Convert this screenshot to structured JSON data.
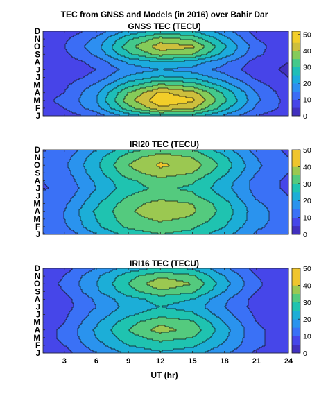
{
  "figure": {
    "title_line1": "TEC from GNSS and Models (in 2016) over Bahir Dar",
    "xlabel": "UT (hr)"
  },
  "colormap": [
    "#3e26a8",
    "#4743e8",
    "#3680fb",
    "#1caadf",
    "#1fc7a8",
    "#80cc5b",
    "#ebba31",
    "#f9e022"
  ],
  "chart_data": [
    {
      "type": "heatmap",
      "title": "GNSS TEC (TECU)",
      "x": [
        0,
        3,
        6,
        9,
        12,
        15,
        18,
        21,
        24
      ],
      "xlim": [
        1,
        24
      ],
      "xticks": [
        3,
        6,
        9,
        12,
        15,
        18,
        21,
        24
      ],
      "yticklabels": [
        "J",
        "F",
        "M",
        "A",
        "M",
        "J",
        "J",
        "A",
        "S",
        "O",
        "N",
        "D"
      ],
      "cbar_ticks": [
        0,
        10,
        20,
        30,
        40,
        50
      ],
      "clim": [
        0,
        52
      ],
      "levels": [
        5,
        10,
        15,
        20,
        25,
        30,
        35,
        40,
        45
      ],
      "z": [
        [
          6,
          7,
          12,
          22,
          28,
          27,
          19,
          10,
          6
        ],
        [
          8,
          10,
          18,
          33,
          44,
          41,
          27,
          14,
          8
        ],
        [
          8,
          11,
          20,
          38,
          49,
          46,
          31,
          16,
          8
        ],
        [
          8,
          10,
          19,
          35,
          46,
          42,
          29,
          15,
          7
        ],
        [
          7,
          9,
          16,
          28,
          36,
          33,
          23,
          12,
          6
        ],
        [
          6,
          7,
          12,
          21,
          26,
          24,
          17,
          9,
          5
        ],
        [
          5,
          6,
          10,
          17,
          20,
          18,
          13,
          7,
          4
        ],
        [
          5,
          7,
          12,
          21,
          25,
          23,
          16,
          8,
          5
        ],
        [
          6,
          9,
          16,
          29,
          37,
          35,
          23,
          11,
          6
        ],
        [
          6,
          10,
          18,
          33,
          43,
          41,
          26,
          12,
          6
        ],
        [
          6,
          9,
          16,
          29,
          37,
          34,
          22,
          10,
          6
        ],
        [
          5,
          7,
          12,
          21,
          27,
          25,
          17,
          8,
          5
        ]
      ]
    },
    {
      "type": "heatmap",
      "title": "IRI20 TEC (TECU)",
      "x": [
        0,
        3,
        6,
        9,
        12,
        15,
        18,
        21,
        24
      ],
      "xlim": [
        1,
        24
      ],
      "xticks": [
        3,
        6,
        9,
        12,
        15,
        18,
        21,
        24
      ],
      "yticklabels": [
        "J",
        "F",
        "M",
        "A",
        "M",
        "J",
        "J",
        "A",
        "S",
        "O",
        "N",
        "D"
      ],
      "cbar_ticks": [
        0,
        10,
        20,
        30,
        40,
        50
      ],
      "clim": [
        0,
        50
      ],
      "levels": [
        5,
        10,
        15,
        20,
        25,
        30,
        35,
        40
      ],
      "z": [
        [
          9,
          11,
          20,
          27,
          30,
          28,
          22,
          14,
          10
        ],
        [
          11,
          14,
          24,
          31,
          33,
          31,
          25,
          16,
          12
        ],
        [
          12,
          15,
          25,
          33,
          36,
          34,
          27,
          17,
          12
        ],
        [
          12,
          15,
          26,
          34,
          39,
          36,
          28,
          17,
          12
        ],
        [
          11,
          14,
          24,
          33,
          37,
          35,
          27,
          16,
          11
        ],
        [
          10,
          12,
          22,
          30,
          33,
          31,
          24,
          14,
          10
        ],
        [
          9,
          11,
          20,
          28,
          31,
          29,
          22,
          13,
          9
        ],
        [
          9,
          12,
          21,
          29,
          33,
          31,
          23,
          13,
          9
        ],
        [
          10,
          13,
          23,
          33,
          38,
          35,
          26,
          15,
          10
        ],
        [
          10,
          14,
          24,
          35,
          41,
          38,
          28,
          16,
          10
        ],
        [
          10,
          13,
          23,
          33,
          38,
          35,
          26,
          15,
          10
        ],
        [
          9,
          11,
          20,
          28,
          32,
          30,
          22,
          13,
          9
        ]
      ]
    },
    {
      "type": "heatmap",
      "title": "IRI16 TEC (TECU)",
      "x": [
        0,
        3,
        6,
        9,
        12,
        15,
        18,
        21,
        24
      ],
      "xlim": [
        1,
        24
      ],
      "xticks": [
        3,
        6,
        9,
        12,
        15,
        18,
        21,
        24
      ],
      "yticklabels": [
        "J",
        "F",
        "M",
        "A",
        "M",
        "J",
        "J",
        "A",
        "S",
        "O",
        "N",
        "D"
      ],
      "cbar_ticks": [
        0,
        10,
        20,
        30,
        40,
        50
      ],
      "clim": [
        0,
        50
      ],
      "levels": [
        5,
        10,
        15,
        20,
        25,
        30,
        35,
        40
      ],
      "z": [
        [
          5,
          8,
          15,
          21,
          24,
          22,
          16,
          9,
          6
        ],
        [
          6,
          10,
          18,
          25,
          28,
          26,
          19,
          11,
          7
        ],
        [
          7,
          11,
          20,
          28,
          32,
          30,
          21,
          11,
          7
        ],
        [
          7,
          11,
          21,
          30,
          37,
          33,
          22,
          11,
          7
        ],
        [
          6,
          10,
          19,
          28,
          34,
          31,
          20,
          10,
          6
        ],
        [
          5,
          9,
          17,
          24,
          28,
          26,
          17,
          9,
          5
        ],
        [
          5,
          8,
          15,
          22,
          25,
          23,
          15,
          8,
          5
        ],
        [
          5,
          8,
          16,
          23,
          27,
          25,
          16,
          8,
          5
        ],
        [
          6,
          10,
          19,
          28,
          34,
          31,
          20,
          10,
          6
        ],
        [
          6,
          11,
          20,
          30,
          39,
          35,
          22,
          11,
          6
        ],
        [
          6,
          10,
          19,
          28,
          34,
          31,
          20,
          10,
          6
        ],
        [
          5,
          8,
          15,
          22,
          26,
          24,
          16,
          8,
          5
        ]
      ]
    }
  ]
}
